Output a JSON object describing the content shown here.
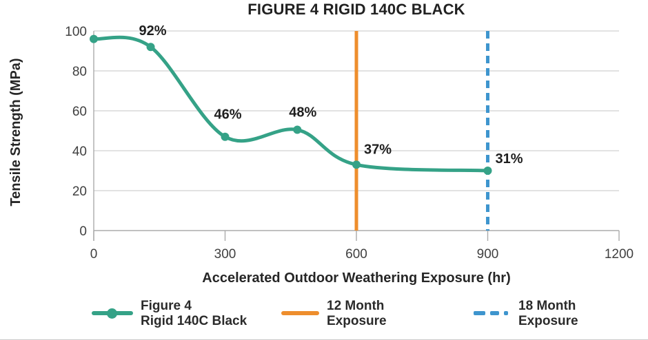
{
  "figure": {
    "title": "FIGURE 4 RIGID 140C BLACK"
  },
  "axes": {
    "y_title": "Tensile Strength (MPa)",
    "x_title": "Accelerated Outdoor Weathering Exposure (hr)"
  },
  "chart_data": {
    "type": "line",
    "title": "FIGURE 4 RIGID 140C BLACK",
    "xlabel": "Accelerated Outdoor Weathering Exposure (hr)",
    "ylabel": "Tensile Strength (MPa)",
    "xlim": [
      0,
      1200
    ],
    "ylim": [
      0,
      100
    ],
    "x_ticks": [
      0,
      300,
      600,
      900,
      1200
    ],
    "y_ticks": [
      0,
      20,
      40,
      60,
      80,
      100
    ],
    "grid": "horizontal-solid",
    "legend_position": "bottom",
    "style": {
      "grid_color": "#D9D9D9",
      "axis_color": "#ABABAB",
      "tick_label_color": "#404040",
      "data_label_color": "#1F1F1F"
    },
    "series": [
      {
        "name": "Figure 4 Rigid 140C Black",
        "color": "#35A287",
        "marker": "circle",
        "smooth": true,
        "points": [
          {
            "x": 0,
            "y": 96
          },
          {
            "x": 130,
            "y": 92,
            "label": "92%",
            "label_dx": 3,
            "label_dy": -17
          },
          {
            "x": 300,
            "y": 47,
            "label": "46%",
            "label_dx": 4,
            "label_dy": -26
          },
          {
            "x": 465,
            "y": 50.5,
            "label": "48%",
            "label_dx": 8,
            "label_dy": -19
          },
          {
            "x": 600,
            "y": 33,
            "label": "37%",
            "label_dx": 31,
            "label_dy": -16
          },
          {
            "x": 900,
            "y": 30,
            "label": "31%",
            "label_dx": 31,
            "label_dy": -11
          }
        ]
      }
    ],
    "reference_lines": [
      {
        "x": 600,
        "color": "#EE8E2D",
        "style": "solid",
        "label": "12 Month Exposure"
      },
      {
        "x": 900,
        "color": "#3E95CE",
        "style": "dashed",
        "label": "18 Month Exposure"
      }
    ]
  },
  "legend": {
    "items": [
      {
        "id": "series",
        "line1": "Figure 4",
        "line2": "Rigid 140C Black",
        "color": "#35A287",
        "marker": "line-with-dot"
      },
      {
        "id": "12-month",
        "line1": "12 Month",
        "line2": "Exposure",
        "color": "#EE8E2D",
        "marker": "solid-line"
      },
      {
        "id": "18-month",
        "line1": "18 Month",
        "line2": "Exposure",
        "color": "#3E95CE",
        "marker": "dashed-line"
      }
    ]
  }
}
